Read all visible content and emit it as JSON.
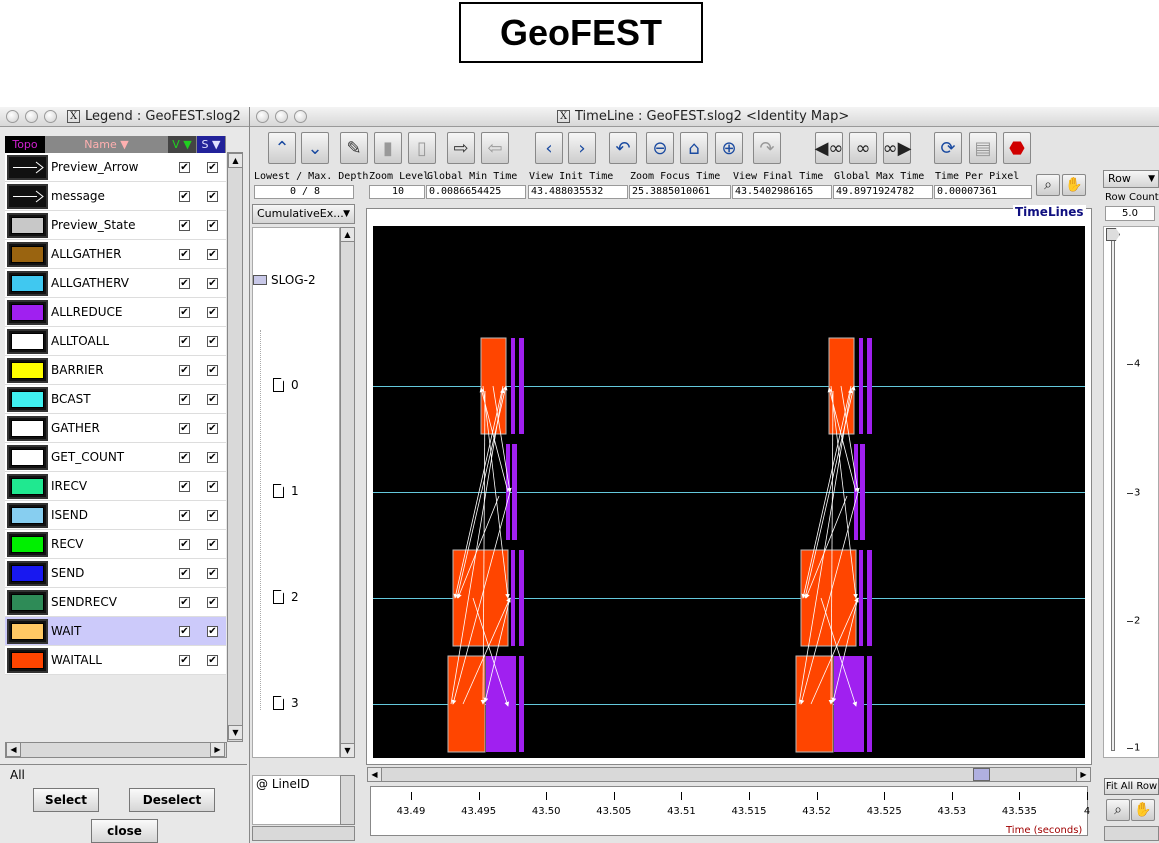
{
  "slide_title": "GeoFEST",
  "legend_window": {
    "title": "Legend : GeoFEST.slog2",
    "headers": {
      "topo": "Topo",
      "name": "Name ▼",
      "v": "V ▼",
      "s": "S ▼"
    },
    "items": [
      {
        "name": "Preview_Arrow",
        "kind": "arrow",
        "color": "#ffffff",
        "v": "✔",
        "s": "✔"
      },
      {
        "name": "message",
        "kind": "arrow",
        "color": "#ffffff",
        "v": "✔",
        "s": "✔"
      },
      {
        "name": "Preview_State",
        "kind": "state",
        "color": "#c8c8c8",
        "v": "✔",
        "s": "✔"
      },
      {
        "name": "ALLGATHER",
        "kind": "state",
        "color": "#9a6410",
        "v": "✔",
        "s": "✔"
      },
      {
        "name": "ALLGATHERV",
        "kind": "state",
        "color": "#40c8f0",
        "v": "✔",
        "s": "✔"
      },
      {
        "name": "ALLREDUCE",
        "kind": "state",
        "color": "#a020f0",
        "v": "✔",
        "s": "✔"
      },
      {
        "name": "ALLTOALL",
        "kind": "state",
        "color": "#ffffff",
        "v": "✔",
        "s": "✔"
      },
      {
        "name": "BARRIER",
        "kind": "state",
        "color": "#ffff00",
        "v": "✔",
        "s": "✔"
      },
      {
        "name": "BCAST",
        "kind": "state",
        "color": "#40f0f0",
        "v": "✔",
        "s": "✔"
      },
      {
        "name": "GATHER",
        "kind": "state",
        "color": "#ffffff",
        "v": "✔",
        "s": "✔"
      },
      {
        "name": "GET_COUNT",
        "kind": "state",
        "color": "#ffffff",
        "v": "✔",
        "s": "✔"
      },
      {
        "name": "IRECV",
        "kind": "state",
        "color": "#20e890",
        "v": "✔",
        "s": "✔"
      },
      {
        "name": "ISEND",
        "kind": "state",
        "color": "#87cef0",
        "v": "✔",
        "s": "✔"
      },
      {
        "name": "RECV",
        "kind": "state",
        "color": "#00f000",
        "v": "✔",
        "s": "✔"
      },
      {
        "name": "SEND",
        "kind": "state",
        "color": "#1818f0",
        "v": "✔",
        "s": "✔"
      },
      {
        "name": "SENDRECV",
        "kind": "state",
        "color": "#2e8b57",
        "v": "✔",
        "s": "✔"
      },
      {
        "name": "WAIT",
        "kind": "state",
        "color": "#ffc864",
        "v": "✔",
        "s": "✔",
        "selected": true
      },
      {
        "name": "WAITALL",
        "kind": "state",
        "color": "#ff4500",
        "v": "✔",
        "s": "✔"
      }
    ],
    "group_label": "All",
    "select_label": "Select",
    "deselect_label": "Deselect",
    "close_label": "close"
  },
  "timeline_window": {
    "title": "TimeLine : GeoFEST.slog2   <Identity Map>",
    "depth_label": "Lowest / Max. Depth",
    "depth_value": "0 / 8",
    "zoom_level_label": "Zoom Level",
    "zoom_level_value": "10",
    "global_min_label": "Global Min Time",
    "global_min_value": "0.0086654425",
    "view_init_label": "View  Init Time",
    "view_init_value": "43.488035532",
    "zoom_focus_label": "Zoom Focus Time",
    "zoom_focus_value": "25.3885010061",
    "view_final_label": "View Final Time",
    "view_final_value": "43.5402986165",
    "global_max_label": "Global Max Time",
    "global_max_value": "49.8971924782",
    "time_per_pixel_label": "Time Per Pixel",
    "time_per_pixel_value": "0.00007361",
    "dropdown_value": "CumulativeEx...",
    "tree_root": "SLOG-2",
    "tree_nodes": [
      "0",
      "1",
      "2",
      "3"
    ],
    "lineid_label": "@ LineID",
    "timelines_label": "TimeLines",
    "row_label": "Row",
    "row_count_label": "Row Count",
    "row_count_value": "5.0",
    "fit_all_rows_label": "Fit All Row",
    "ruler_labels": [
      "4",
      "3",
      "2",
      "1"
    ],
    "axis_ticks": [
      "43.49",
      "43.495",
      "43.50",
      "43.505",
      "43.51",
      "43.515",
      "43.52",
      "43.525",
      "43.53",
      "43.535",
      "4"
    ],
    "axis_title": "Time (seconds)",
    "toolbar_icons": [
      "up-arrow-icon",
      "down-arrow-icon",
      "edit-icon",
      "paste-icon",
      "delete-icon",
      "export-icon",
      "import-icon",
      "back-icon",
      "forward-icon",
      "undo-icon",
      "zoom-out-icon",
      "home-icon",
      "zoom-in-icon",
      "redo-icon",
      "search-backward-icon",
      "search-icon",
      "search-forward-icon",
      "refresh-icon",
      "print-icon",
      "stop-icon"
    ]
  }
}
